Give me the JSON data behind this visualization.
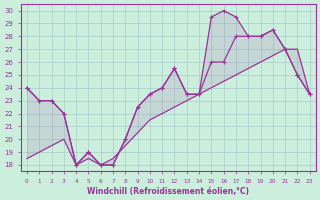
{
  "x": [
    0,
    1,
    2,
    3,
    4,
    5,
    6,
    7,
    8,
    9,
    10,
    11,
    12,
    13,
    14,
    15,
    16,
    17,
    18,
    19,
    20,
    21,
    22,
    23
  ],
  "series_temp": [
    24,
    23,
    23,
    22,
    18,
    19,
    18,
    18,
    20,
    22.5,
    23.5,
    24,
    25.5,
    23.5,
    23.5,
    26,
    26,
    28,
    28,
    28,
    28.5,
    27,
    25,
    23.5
  ],
  "series_wc": [
    24,
    23,
    23,
    22,
    18,
    19,
    18,
    18,
    20,
    22.5,
    23.5,
    24,
    25.5,
    23.5,
    23.5,
    29.5,
    30,
    29.5,
    28,
    28,
    28.5,
    27,
    25,
    23.5
  ],
  "series_ref": [
    18.5,
    19.0,
    19.5,
    20.0,
    18.0,
    18.5,
    18.0,
    18.5,
    19.5,
    20.5,
    21.5,
    22.0,
    22.5,
    23.0,
    23.5,
    24.0,
    24.5,
    25.0,
    25.5,
    26.0,
    26.5,
    27.0,
    27.0,
    23.5
  ],
  "line_color": "#993399",
  "bg_color": "#cceedd",
  "grid_color": "#aacccc",
  "xlabel": "Windchill (Refroidissement éolien,°C)",
  "xlim": [
    -0.5,
    23.5
  ],
  "ylim": [
    17.5,
    30.5
  ],
  "yticks": [
    18,
    19,
    20,
    21,
    22,
    23,
    24,
    25,
    26,
    27,
    28,
    29,
    30
  ],
  "xticks": [
    0,
    1,
    2,
    3,
    4,
    5,
    6,
    7,
    8,
    9,
    10,
    11,
    12,
    13,
    14,
    15,
    16,
    17,
    18,
    19,
    20,
    21,
    22,
    23
  ]
}
